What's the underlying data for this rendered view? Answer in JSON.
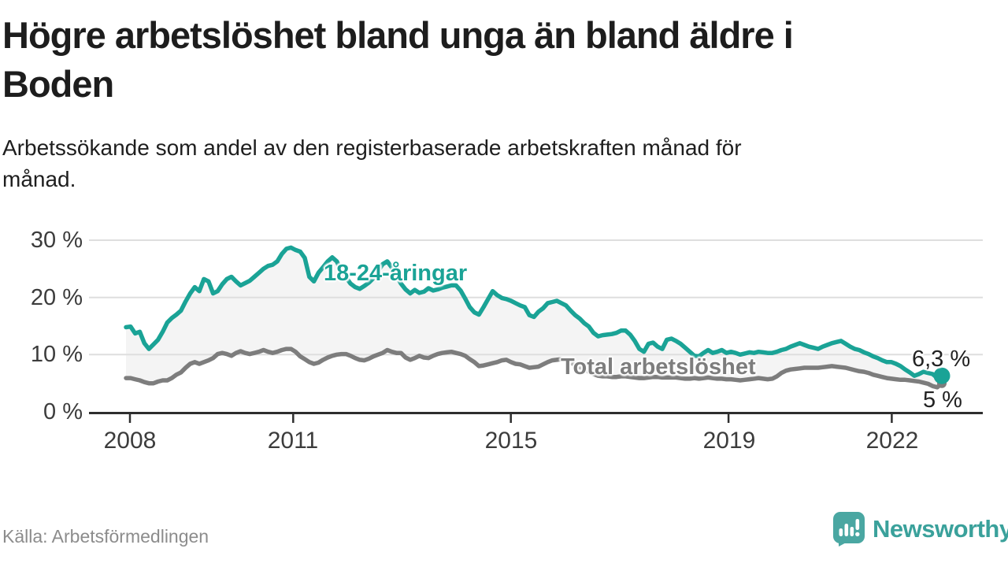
{
  "header": {
    "title_lines": [
      "Högre arbetslöshet bland unga än bland äldre i",
      "Boden"
    ],
    "subtitle_lines": [
      "Arbetssökande som andel av den registerbaserade arbetskraften månad för",
      "månad."
    ]
  },
  "footer": {
    "source": "Källa: Arbetsförmedlingen",
    "brand_name": "Newsworthy"
  },
  "colors": {
    "youth": "#1aa396",
    "total": "#7d7d7d",
    "band": "#f4f4f4",
    "grid": "#dedede",
    "axis": "#2e2e2e",
    "tick_label": "#3c3c3c",
    "value_label": "#222222",
    "logo": "#4aa7a2",
    "logo_text": "#3aa19b",
    "source_text": "#8c8c8c"
  },
  "chart_data": {
    "type": "line",
    "title": "Högre arbetslöshet bland unga än bland äldre i Boden",
    "xlabel": "",
    "ylabel": "",
    "x_unit": "month",
    "x_start": "2008-01",
    "x_end": "2022-11",
    "ylim": [
      0,
      32
    ],
    "grid": "horizontal",
    "legend_position": "inline-labels",
    "y_ticks": [
      30,
      20,
      10,
      0
    ],
    "y_tick_labels": [
      "30 %",
      "20 %",
      "10 %",
      "0 %"
    ],
    "x_ticks": [
      2008,
      2011,
      2015,
      2019,
      2022
    ],
    "x_tick_labels": [
      "2008",
      "2011",
      "2015",
      "2019",
      "2022"
    ],
    "series": [
      {
        "name": "18-24-åringar",
        "color": "#1aa396",
        "end_label": "6,3 %",
        "last_value": 6.3,
        "values": [
          14.8,
          14.9,
          13.7,
          14.0,
          12.0,
          11.0,
          11.8,
          12.6,
          14.0,
          15.6,
          16.4,
          17.0,
          17.7,
          19.3,
          20.7,
          21.8,
          21.1,
          23.2,
          22.8,
          20.7,
          21.1,
          22.3,
          23.2,
          23.6,
          22.8,
          22.1,
          22.5,
          22.9,
          23.6,
          24.3,
          25.0,
          25.5,
          25.7,
          26.3,
          27.6,
          28.5,
          28.7,
          28.3,
          28.0,
          26.9,
          23.6,
          22.8,
          24.3,
          25.3,
          26.3,
          27.0,
          26.3,
          24.5,
          23.5,
          22.4,
          21.8,
          21.5,
          22.0,
          22.6,
          23.4,
          24.6,
          25.8,
          26.3,
          25.2,
          23.8,
          22.4,
          21.4,
          20.7,
          21.3,
          20.8,
          21.0,
          21.6,
          21.2,
          21.4,
          21.7,
          21.9,
          22.1,
          22.1,
          21.2,
          19.8,
          18.3,
          17.4,
          17.0,
          18.3,
          19.7,
          21.1,
          20.4,
          19.9,
          19.7,
          19.4,
          19.0,
          18.6,
          18.3,
          16.9,
          16.6,
          17.5,
          18.1,
          19.0,
          19.2,
          19.4,
          19.0,
          18.6,
          17.7,
          16.9,
          16.3,
          15.5,
          14.9,
          13.8,
          13.2,
          13.4,
          13.5,
          13.6,
          13.8,
          14.2,
          14.2,
          13.5,
          12.4,
          11.0,
          10.5,
          11.9,
          12.1,
          11.4,
          11.0,
          12.6,
          12.8,
          12.4,
          11.9,
          11.2,
          10.5,
          9.8,
          9.7,
          10.3,
          10.8,
          10.3,
          10.5,
          10.8,
          10.3,
          10.5,
          10.3,
          10.0,
          10.2,
          10.4,
          10.3,
          10.5,
          10.4,
          10.3,
          10.3,
          10.5,
          10.8,
          11.0,
          11.4,
          11.7,
          12.0,
          11.7,
          11.4,
          11.2,
          11.0,
          11.4,
          11.7,
          12.0,
          12.2,
          12.4,
          11.9,
          11.4,
          11.0,
          10.8,
          10.4,
          10.1,
          9.7,
          9.4,
          9.0,
          8.7,
          8.7,
          8.4,
          8.0,
          7.4,
          6.9,
          6.3,
          6.6,
          7.0,
          6.8,
          6.6,
          5.9,
          6.3
        ]
      },
      {
        "name": "Total arbetslöshet",
        "color": "#7d7d7d",
        "end_label": "5 %",
        "last_value": 5.0,
        "values": [
          5.9,
          5.9,
          5.7,
          5.5,
          5.2,
          5.0,
          5.0,
          5.3,
          5.5,
          5.5,
          5.9,
          6.5,
          6.9,
          7.7,
          8.4,
          8.7,
          8.4,
          8.7,
          9.0,
          9.4,
          10.1,
          10.3,
          10.1,
          9.8,
          10.3,
          10.6,
          10.3,
          10.1,
          10.3,
          10.5,
          10.8,
          10.5,
          10.3,
          10.5,
          10.8,
          11.0,
          11.0,
          10.5,
          9.7,
          9.2,
          8.7,
          8.4,
          8.6,
          9.1,
          9.5,
          9.8,
          10.0,
          10.1,
          10.1,
          9.8,
          9.4,
          9.1,
          9.0,
          9.3,
          9.7,
          10.0,
          10.3,
          10.8,
          10.5,
          10.3,
          10.3,
          9.5,
          9.1,
          9.4,
          9.8,
          9.5,
          9.4,
          9.8,
          10.1,
          10.3,
          10.4,
          10.5,
          10.3,
          10.1,
          9.8,
          9.2,
          8.7,
          8.0,
          8.1,
          8.3,
          8.5,
          8.7,
          9.0,
          9.1,
          8.7,
          8.4,
          8.3,
          8.0,
          7.7,
          7.8,
          7.9,
          8.3,
          8.7,
          9.0,
          9.1,
          9.2,
          9.0,
          8.6,
          8.2,
          7.8,
          7.4,
          7.0,
          6.6,
          6.3,
          6.2,
          6.2,
          6.1,
          6.1,
          6.2,
          6.2,
          6.1,
          6.0,
          5.9,
          5.9,
          6.0,
          6.1,
          6.1,
          6.0,
          6.0,
          6.0,
          6.0,
          5.9,
          5.8,
          5.8,
          5.9,
          5.8,
          5.9,
          6.0,
          5.9,
          5.8,
          5.8,
          5.7,
          5.7,
          5.6,
          5.5,
          5.6,
          5.7,
          5.8,
          5.9,
          5.8,
          5.7,
          5.8,
          6.2,
          6.8,
          7.2,
          7.4,
          7.5,
          7.6,
          7.7,
          7.7,
          7.7,
          7.7,
          7.8,
          7.9,
          8.0,
          7.9,
          7.8,
          7.7,
          7.5,
          7.3,
          7.1,
          7.0,
          6.8,
          6.5,
          6.3,
          6.1,
          5.9,
          5.8,
          5.7,
          5.6,
          5.6,
          5.5,
          5.4,
          5.3,
          5.1,
          4.9,
          4.5,
          4.3,
          5.0
        ]
      }
    ]
  }
}
